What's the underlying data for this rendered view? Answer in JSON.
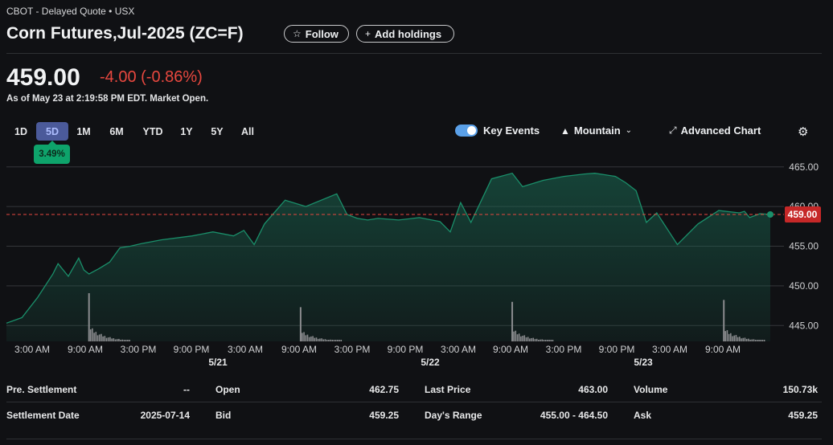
{
  "header": {
    "exchange": "CBOT - Delayed Quote • USX",
    "title": "Corn Futures,Jul-2025 (ZC=F)",
    "follow_label": "Follow",
    "add_holdings_label": "Add holdings"
  },
  "quote": {
    "price": "459.00",
    "change": "-4.00 (-0.86%)",
    "as_of": "As of May 23 at 2:19:58 PM EDT. Market Open."
  },
  "ranges": [
    "1D",
    "5D",
    "1M",
    "6M",
    "YTD",
    "1Y",
    "5Y",
    "All"
  ],
  "range_selected": "5D",
  "range_change": "3.49%",
  "toolbar": {
    "key_events_label": "Key Events",
    "key_events_on": true,
    "chart_type_label": "Mountain",
    "advanced_chart_label": "Advanced Chart"
  },
  "colors": {
    "line": "#1a8f6a",
    "down": "#e8483f",
    "accent": "#5aa0e8",
    "volume": "#8a8b8e"
  },
  "chart_data": {
    "type": "area",
    "y_ticks": [
      "465.00",
      "460.00",
      "455.00",
      "450.00",
      "445.00"
    ],
    "ylim": [
      443,
      467
    ],
    "current_price_label": "459.00",
    "x_ticks": [
      "3:00 AM",
      "9:00 AM",
      "3:00 PM",
      "9:00 PM",
      "3:00 AM",
      "9:00 AM",
      "3:00 PM",
      "9:00 PM",
      "3:00 AM",
      "9:00 AM",
      "3:00 PM",
      "9:00 PM",
      "3:00 AM",
      "9:00 AM"
    ],
    "date_labels": [
      "5/21",
      "5/22",
      "5/23"
    ],
    "x": [
      0,
      3,
      6,
      9,
      10,
      12,
      14,
      15,
      16,
      18,
      20,
      22,
      24,
      26,
      30,
      36,
      40,
      44,
      46,
      48,
      50,
      54,
      58,
      64,
      66,
      68,
      70,
      72,
      76,
      80,
      84,
      86,
      88,
      90,
      94,
      98,
      100,
      104,
      108,
      112,
      114,
      116,
      118,
      120,
      122,
      124,
      126,
      130,
      134,
      138,
      142,
      143,
      144,
      146,
      148
    ],
    "values": [
      445.3,
      446.0,
      448.5,
      451.5,
      452.8,
      451.2,
      453.5,
      452.0,
      451.5,
      452.2,
      453.0,
      454.8,
      455.0,
      455.3,
      455.8,
      456.3,
      456.8,
      456.3,
      457.0,
      455.2,
      457.8,
      460.8,
      460.0,
      461.6,
      459.0,
      458.5,
      458.3,
      458.5,
      458.3,
      458.6,
      458.1,
      456.8,
      460.5,
      458.0,
      463.5,
      464.2,
      462.5,
      463.3,
      463.8,
      464.1,
      464.2,
      464.0,
      463.8,
      463.0,
      462.0,
      458.0,
      459.2,
      455.2,
      457.8,
      459.5,
      459.2,
      459.4,
      458.6,
      459.1,
      459.0
    ],
    "volume_spikes": [
      {
        "x": 16,
        "v": 1.0
      },
      {
        "x": 57,
        "v": 0.71
      },
      {
        "x": 98,
        "v": 0.82
      },
      {
        "x": 139,
        "v": 0.86
      }
    ]
  },
  "stats": [
    {
      "label": "Pre. Settlement",
      "value": "--"
    },
    {
      "label": "Open",
      "value": "462.75"
    },
    {
      "label": "Last Price",
      "value": "463.00"
    },
    {
      "label": "Volume",
      "value": "150.73k"
    },
    {
      "label": "Settlement Date",
      "value": "2025-07-14"
    },
    {
      "label": "Bid",
      "value": "459.25"
    },
    {
      "label": "Day's Range",
      "value": "455.00 - 464.50"
    },
    {
      "label": "Ask",
      "value": "459.25"
    }
  ]
}
